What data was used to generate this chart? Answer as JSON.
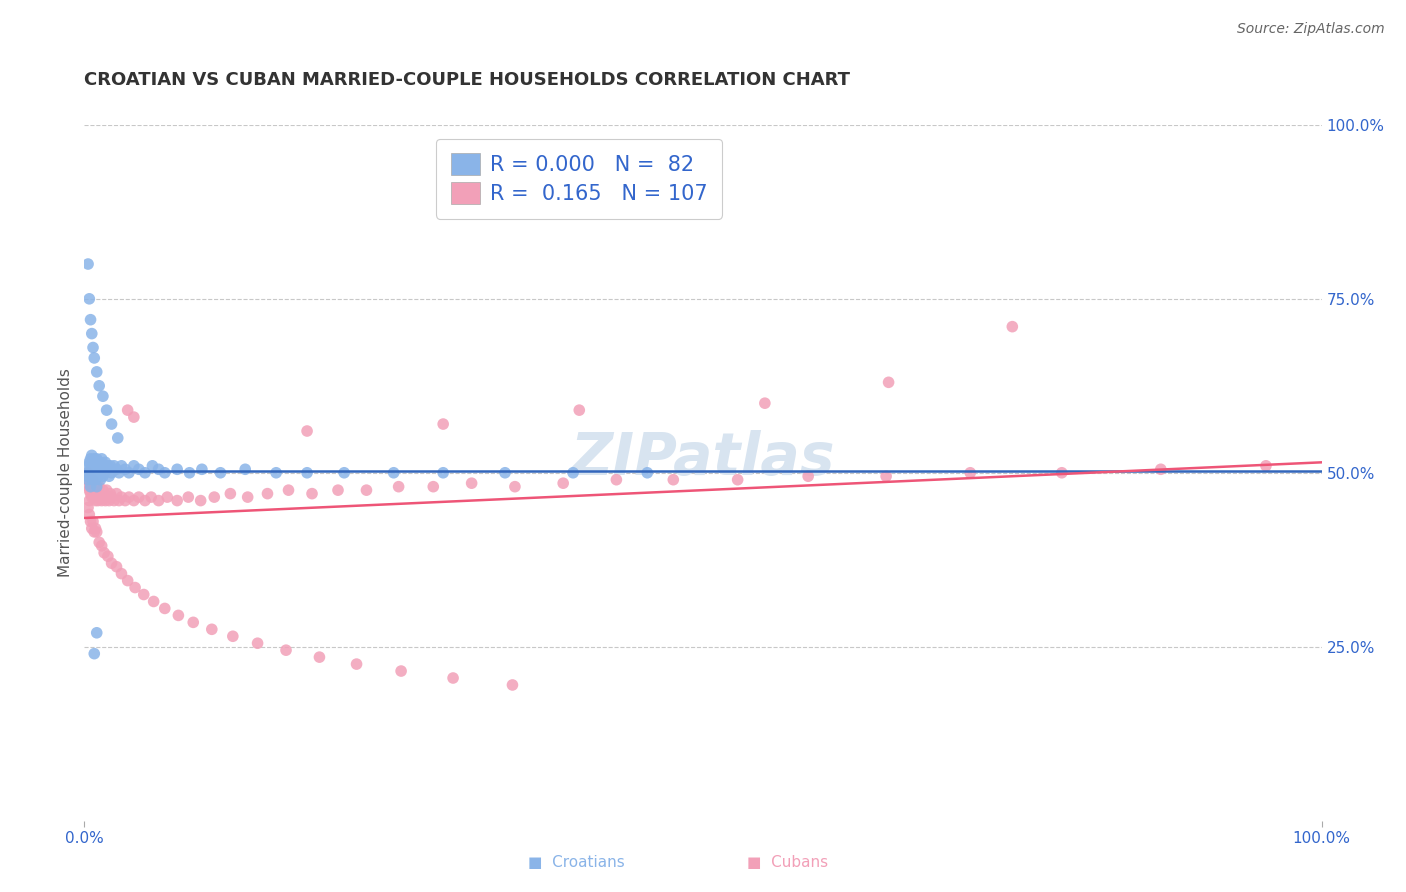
{
  "title": "CROATIAN VS CUBAN MARRIED-COUPLE HOUSEHOLDS CORRELATION CHART",
  "source": "Source: ZipAtlas.com",
  "ylabel": "Married-couple Households",
  "xlim": [
    0,
    1.0
  ],
  "ylim": [
    0,
    1.0
  ],
  "ytick_labels": [
    "25.0%",
    "50.0%",
    "75.0%",
    "100.0%"
  ],
  "ytick_vals": [
    0.25,
    0.5,
    0.75,
    1.0
  ],
  "grid_color": "#c8c8c8",
  "background_color": "#ffffff",
  "croatians_R": "0.000",
  "croatians_N": "82",
  "cubans_R": "0.165",
  "cubans_N": "107",
  "croatian_color": "#8ab4e8",
  "cuban_color": "#f2a0b8",
  "croatian_trend_color": "#3366bb",
  "cuban_trend_color": "#ee5577",
  "legend_text_color": "#3366cc",
  "croatians_x": [
    0.002,
    0.003,
    0.003,
    0.004,
    0.004,
    0.005,
    0.005,
    0.005,
    0.006,
    0.006,
    0.006,
    0.007,
    0.007,
    0.007,
    0.007,
    0.008,
    0.008,
    0.008,
    0.009,
    0.009,
    0.009,
    0.01,
    0.01,
    0.01,
    0.01,
    0.011,
    0.011,
    0.012,
    0.012,
    0.013,
    0.013,
    0.014,
    0.014,
    0.015,
    0.015,
    0.016,
    0.017,
    0.018,
    0.019,
    0.02,
    0.021,
    0.022,
    0.024,
    0.026,
    0.028,
    0.03,
    0.033,
    0.036,
    0.04,
    0.044,
    0.049,
    0.055,
    0.06,
    0.065,
    0.075,
    0.085,
    0.095,
    0.11,
    0.13,
    0.155,
    0.18,
    0.21,
    0.25,
    0.29,
    0.34,
    0.395,
    0.455,
    0.003,
    0.004,
    0.005,
    0.006,
    0.007,
    0.008,
    0.01,
    0.012,
    0.015,
    0.018,
    0.022,
    0.027,
    0.01,
    0.008
  ],
  "croatians_y": [
    0.495,
    0.49,
    0.51,
    0.5,
    0.515,
    0.505,
    0.52,
    0.48,
    0.51,
    0.5,
    0.525,
    0.505,
    0.515,
    0.49,
    0.5,
    0.51,
    0.495,
    0.52,
    0.505,
    0.515,
    0.49,
    0.51,
    0.5,
    0.52,
    0.48,
    0.515,
    0.495,
    0.51,
    0.5,
    0.515,
    0.49,
    0.505,
    0.52,
    0.495,
    0.51,
    0.5,
    0.515,
    0.505,
    0.51,
    0.495,
    0.51,
    0.5,
    0.51,
    0.505,
    0.5,
    0.51,
    0.505,
    0.5,
    0.51,
    0.505,
    0.5,
    0.51,
    0.505,
    0.5,
    0.505,
    0.5,
    0.505,
    0.5,
    0.505,
    0.5,
    0.5,
    0.5,
    0.5,
    0.5,
    0.5,
    0.5,
    0.5,
    0.8,
    0.75,
    0.72,
    0.7,
    0.68,
    0.665,
    0.645,
    0.625,
    0.61,
    0.59,
    0.57,
    0.55,
    0.27,
    0.24
  ],
  "cubans_x": [
    0.002,
    0.003,
    0.003,
    0.004,
    0.004,
    0.005,
    0.005,
    0.006,
    0.006,
    0.007,
    0.007,
    0.008,
    0.008,
    0.009,
    0.009,
    0.01,
    0.01,
    0.011,
    0.011,
    0.012,
    0.012,
    0.013,
    0.014,
    0.015,
    0.016,
    0.017,
    0.018,
    0.019,
    0.02,
    0.021,
    0.022,
    0.024,
    0.026,
    0.028,
    0.03,
    0.033,
    0.036,
    0.04,
    0.044,
    0.049,
    0.054,
    0.06,
    0.067,
    0.075,
    0.084,
    0.094,
    0.105,
    0.118,
    0.132,
    0.148,
    0.165,
    0.184,
    0.205,
    0.228,
    0.254,
    0.282,
    0.313,
    0.348,
    0.387,
    0.43,
    0.476,
    0.528,
    0.585,
    0.648,
    0.716,
    0.79,
    0.87,
    0.955,
    0.003,
    0.004,
    0.005,
    0.006,
    0.007,
    0.008,
    0.009,
    0.01,
    0.012,
    0.014,
    0.016,
    0.019,
    0.022,
    0.026,
    0.03,
    0.035,
    0.041,
    0.048,
    0.056,
    0.065,
    0.076,
    0.088,
    0.103,
    0.12,
    0.14,
    0.163,
    0.19,
    0.22,
    0.256,
    0.298,
    0.346,
    0.035,
    0.04,
    0.18,
    0.29,
    0.4,
    0.55,
    0.65,
    0.75
  ],
  "cubans_y": [
    0.49,
    0.48,
    0.5,
    0.46,
    0.475,
    0.49,
    0.47,
    0.465,
    0.48,
    0.475,
    0.49,
    0.465,
    0.475,
    0.46,
    0.47,
    0.48,
    0.465,
    0.475,
    0.46,
    0.47,
    0.48,
    0.465,
    0.46,
    0.475,
    0.465,
    0.46,
    0.475,
    0.465,
    0.46,
    0.47,
    0.465,
    0.46,
    0.47,
    0.46,
    0.465,
    0.46,
    0.465,
    0.46,
    0.465,
    0.46,
    0.465,
    0.46,
    0.465,
    0.46,
    0.465,
    0.46,
    0.465,
    0.47,
    0.465,
    0.47,
    0.475,
    0.47,
    0.475,
    0.475,
    0.48,
    0.48,
    0.485,
    0.48,
    0.485,
    0.49,
    0.49,
    0.49,
    0.495,
    0.495,
    0.5,
    0.5,
    0.505,
    0.51,
    0.45,
    0.44,
    0.43,
    0.42,
    0.43,
    0.415,
    0.42,
    0.415,
    0.4,
    0.395,
    0.385,
    0.38,
    0.37,
    0.365,
    0.355,
    0.345,
    0.335,
    0.325,
    0.315,
    0.305,
    0.295,
    0.285,
    0.275,
    0.265,
    0.255,
    0.245,
    0.235,
    0.225,
    0.215,
    0.205,
    0.195,
    0.59,
    0.58,
    0.56,
    0.57,
    0.59,
    0.6,
    0.63,
    0.71
  ],
  "watermark": "ZIPatlas",
  "watermark_color": "#d8e4f0",
  "croatian_trend_y_start": 0.502,
  "croatian_trend_y_end": 0.502,
  "cuban_trend_x_start": 0.0,
  "cuban_trend_x_end": 1.0,
  "cuban_trend_y_start": 0.435,
  "cuban_trend_y_end": 0.515
}
